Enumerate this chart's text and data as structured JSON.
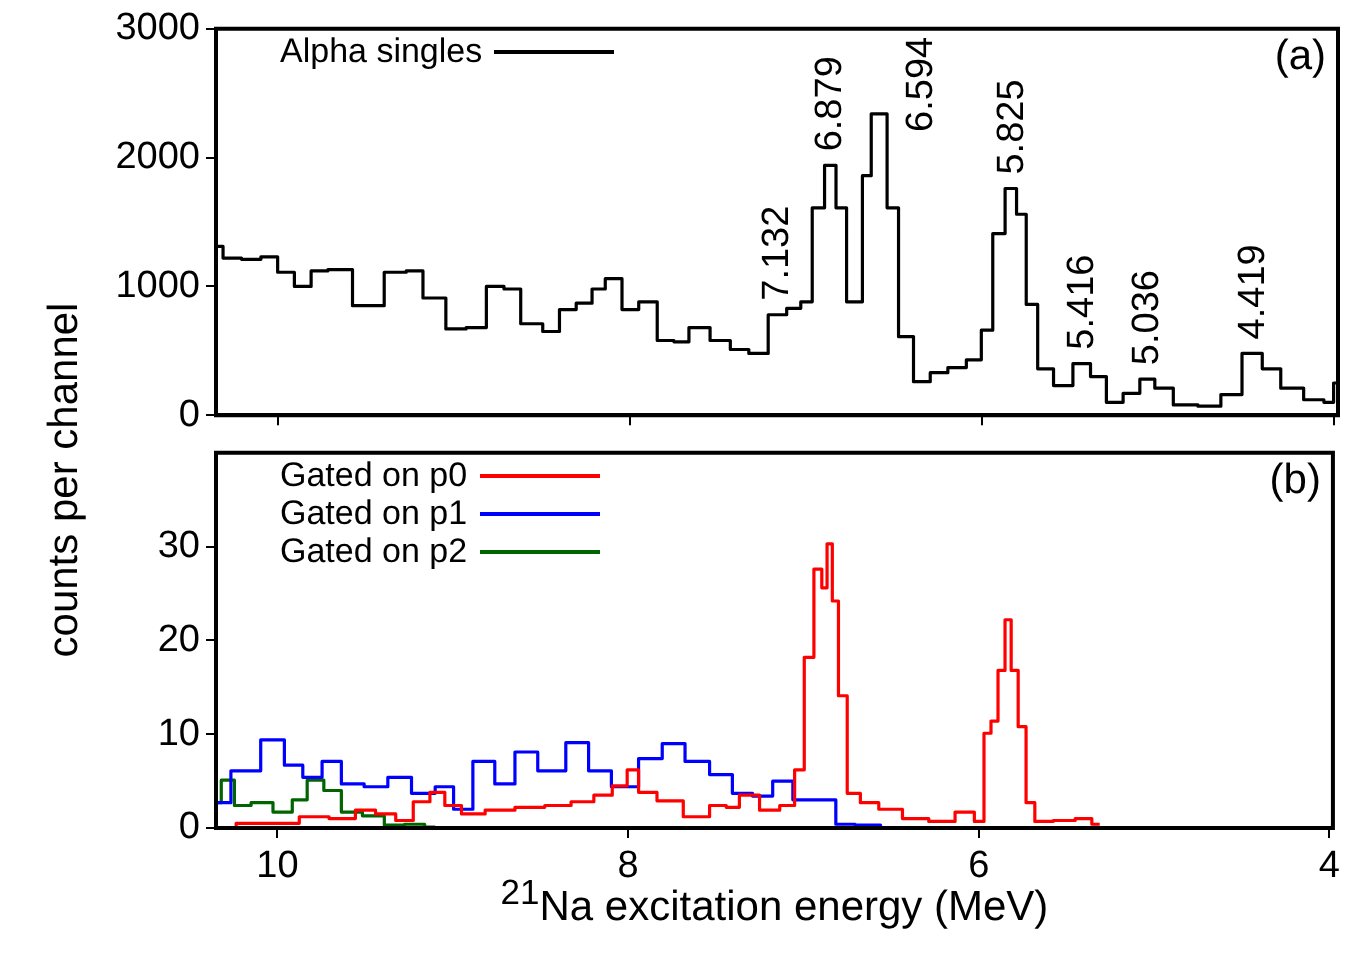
{
  "chart_data": [
    {
      "type": "step",
      "ylabel": "counts per channel",
      "xlim": [
        10.35,
        3.98
      ],
      "xticks": [
        10,
        8,
        6,
        4
      ],
      "ylim": [
        0,
        3000
      ],
      "yticks": [
        0,
        1000,
        2000,
        3000
      ],
      "tick_labels": "y",
      "legend": "top left",
      "annotations": [
        "(a)",
        {
          "text": "7.132",
          "x": 7.16,
          "y": 780
        },
        {
          "text": "6.879",
          "x": 6.86,
          "y": 1940
        },
        {
          "text": "6.594",
          "x": 6.57,
          "y": 2340
        },
        {
          "text": "5.825",
          "x": 5.83,
          "y": 1760
        },
        {
          "text": "5.416",
          "x": 5.43,
          "y": 400
        },
        {
          "text": "5.036",
          "x": 5.06,
          "y": 280
        },
        {
          "text": "4.419",
          "x": 4.46,
          "y": 480
        }
      ],
      "series": [
        {
          "name": "Alpha singles",
          "color": "#000000",
          "x": [
            10.35,
            10.27,
            10.14,
            10.05,
            9.95,
            9.86,
            9.76,
            9.67,
            9.48,
            9.31,
            9.23,
            9.12,
            8.97,
            8.89,
            8.74,
            8.69,
            8.55,
            8.44,
            8.36,
            8.25,
            8.18,
            8.1,
            7.99,
            7.91,
            7.78,
            7.72,
            7.61,
            7.48,
            7.38,
            7.27,
            7.16,
            7.06,
            7.0,
            6.93,
            6.86,
            6.8,
            6.74,
            6.71,
            6.65,
            6.61,
            6.57,
            6.51,
            6.44,
            6.34,
            6.25,
            6.14,
            6.04,
            5.97,
            5.91,
            5.83,
            5.78,
            5.72,
            5.65,
            5.54,
            5.43,
            5.34,
            5.25,
            5.15,
            5.06,
            4.98,
            4.85,
            4.7,
            4.59,
            4.46,
            4.36,
            4.25,
            4.1,
            4.02,
            3.99
          ],
          "values": [
            1310,
            1220,
            1210,
            1230,
            1110,
            1000,
            1120,
            1130,
            850,
            1110,
            1120,
            910,
            670,
            680,
            1000,
            980,
            710,
            650,
            820,
            870,
            980,
            1060,
            820,
            880,
            580,
            570,
            680,
            580,
            510,
            480,
            780,
            830,
            880,
            1610,
            1940,
            1610,
            880,
            880,
            1860,
            2340,
            2340,
            1610,
            610,
            260,
            330,
            370,
            430,
            660,
            1410,
            1760,
            1560,
            860,
            360,
            230,
            400,
            300,
            100,
            170,
            280,
            210,
            80,
            70,
            160,
            480,
            360,
            210,
            120,
            100,
            250
          ]
        }
      ]
    },
    {
      "type": "step",
      "xlabel": "$^{21}$Na excitation energy (MeV)",
      "xlim": [
        10.35,
        3.98
      ],
      "xticks": [
        10,
        8,
        6,
        4
      ],
      "ylim": [
        0,
        40
      ],
      "yticks": [
        0,
        10,
        20,
        30
      ],
      "legend": "top left",
      "annotations": [
        "(b)"
      ],
      "series": [
        {
          "name": "Gated on p0",
          "color": "#ff0000",
          "x": [
            10.33,
            10.14,
            9.95,
            9.8,
            9.61,
            9.5,
            9.38,
            9.27,
            9.18,
            9.08,
            9.01,
            8.89,
            8.74,
            8.55,
            8.4,
            8.25,
            8.14,
            8.04,
            7.97,
            7.91,
            7.76,
            7.61,
            7.46,
            7.42,
            7.31,
            7.19,
            7.08,
            7.02,
            6.97,
            6.91,
            6.88,
            6.85,
            6.82,
            6.78,
            6.72,
            6.63,
            6.51,
            6.36,
            6.21,
            6.06,
            5.99,
            5.95,
            5.91,
            5.87,
            5.83,
            5.8,
            5.75,
            5.71,
            5.65,
            5.5,
            5.4,
            5.31
          ],
          "values": [
            0,
            0.5,
            0.5,
            1.2,
            1,
            1.9,
            1.5,
            0.8,
            2.8,
            3.8,
            2.4,
            1.5,
            1.9,
            2.2,
            2.4,
            2.8,
            3.5,
            4.5,
            6.2,
            3.8,
            2.9,
            1.2,
            2.4,
            2.2,
            3.5,
            1.9,
            2.4,
            6.2,
            18.2,
            27.6,
            25.6,
            30.3,
            24.2,
            14.1,
            3.7,
            2.7,
            2,
            1,
            0.7,
            1.7,
            0.7,
            10.1,
            11.4,
            16.8,
            22.2,
            16.8,
            10.8,
            2.7,
            0.7,
            0.8,
            1,
            0.4
          ]
        },
        {
          "name": "Gated on p1",
          "color": "#0000ff",
          "x": [
            10.35,
            10.18,
            10.01,
            9.91,
            9.8,
            9.69,
            9.58,
            9.43,
            9.31,
            9.16,
            9.04,
            8.95,
            8.82,
            8.7,
            8.59,
            8.44,
            8.27,
            8.18,
            8.01,
            7.87,
            7.74,
            7.61,
            7.46,
            7.35,
            7.23,
            7.12,
            7.0,
            6.83,
            6.8,
            6.61,
            6.51
          ],
          "values": [
            2.7,
            6.1,
            9.4,
            6.7,
            5.4,
            7.1,
            4.7,
            4.4,
            5.4,
            3.7,
            4.4,
            2,
            7.1,
            4.7,
            8.1,
            6.1,
            9.1,
            6.1,
            4.4,
            7.4,
            9,
            7.1,
            5.7,
            3.7,
            3.4,
            5,
            3,
            3,
            0.4,
            0.3,
            0
          ]
        },
        {
          "name": "Gated on p2",
          "color": "#006400",
          "x": [
            10.35,
            10.29,
            10.2,
            10.1,
            9.95,
            9.88,
            9.78,
            9.69,
            9.58,
            9.45,
            9.33,
            9.22,
            9.1
          ],
          "values": [
            2.7,
            5.1,
            2.4,
            2.7,
            1.7,
            3,
            5.1,
            4,
            1.7,
            1.3,
            0.3,
            0.4,
            0.1
          ]
        }
      ]
    }
  ]
}
